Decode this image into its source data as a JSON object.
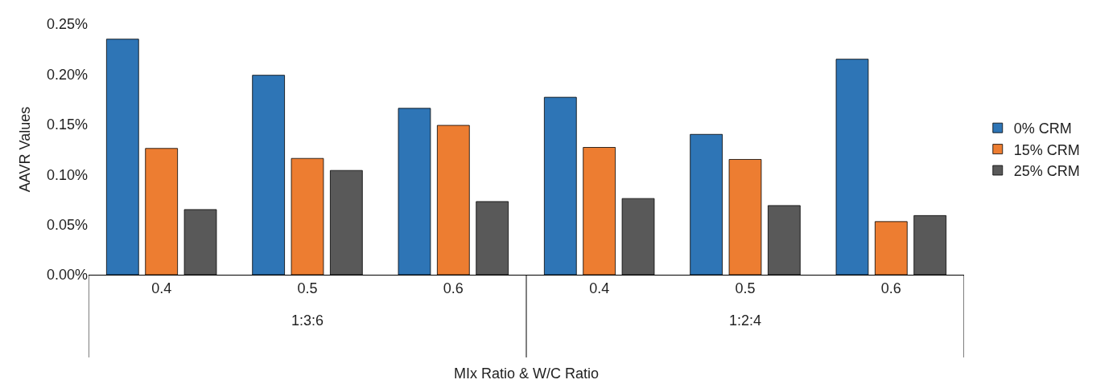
{
  "chart_data": {
    "type": "bar",
    "xlabel": "MIx Ratio & W/C Ratio",
    "ylabel": "AAVR Values",
    "categories": [
      "0.4",
      "0.5",
      "0.6",
      "0.4",
      "0.5",
      "0.6"
    ],
    "annotations": [
      "1:3:6",
      "1:2:4"
    ],
    "series": [
      {
        "name": "0% CRM",
        "color": "#2e75b6",
        "values": [
          0.235,
          0.199,
          0.166,
          0.177,
          0.14,
          0.215
        ]
      },
      {
        "name": "15% CRM",
        "color": "#ed7d31",
        "values": [
          0.126,
          0.116,
          0.149,
          0.127,
          0.115,
          0.053
        ]
      },
      {
        "name": "25% CRM",
        "color": "#595959",
        "values": [
          0.065,
          0.104,
          0.073,
          0.076,
          0.069,
          0.059
        ]
      }
    ],
    "ylim": [
      0,
      0.25
    ],
    "yticks": [
      {
        "value": 0,
        "label": "0.00%"
      },
      {
        "value": 0.05,
        "label": "0.05%"
      },
      {
        "value": 0.1,
        "label": "0.10%"
      },
      {
        "value": 0.15,
        "label": "0.15%"
      },
      {
        "value": 0.2,
        "label": "0.20%"
      },
      {
        "value": 0.25,
        "label": "0.25%"
      }
    ],
    "legend": "right"
  }
}
